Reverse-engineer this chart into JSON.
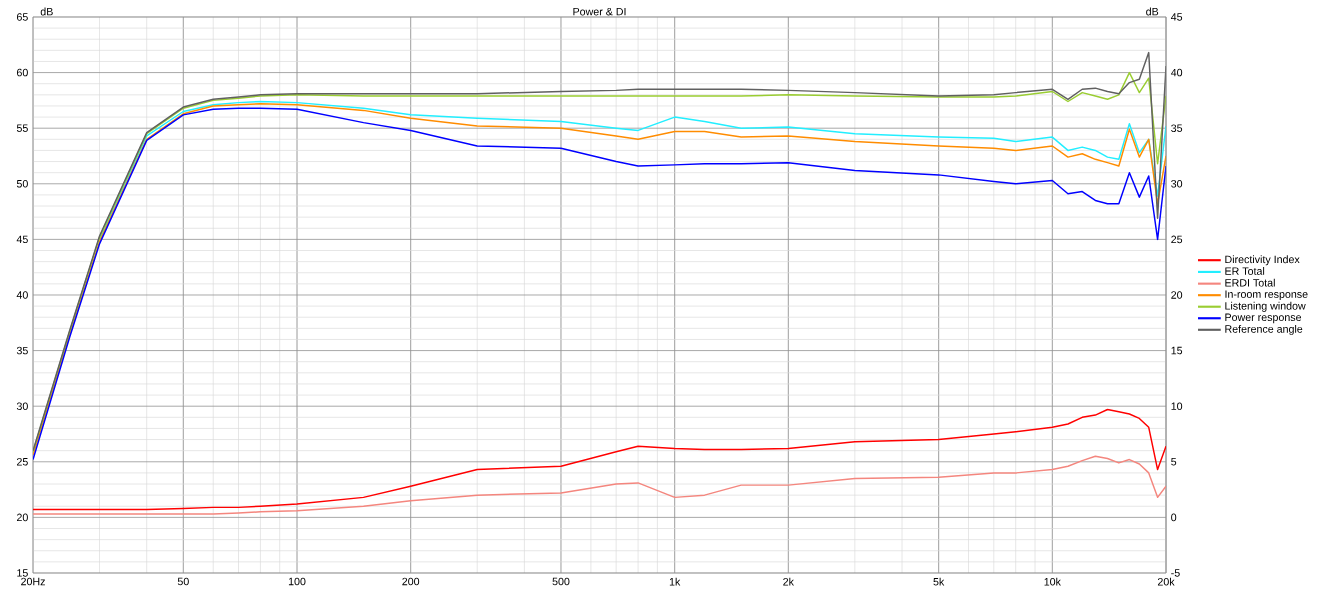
{
  "chart_data": {
    "type": "line",
    "title": "Power & DI",
    "ylabel": "dB",
    "y2label": "dB",
    "x": [
      20,
      25,
      30,
      40,
      50,
      60,
      70,
      80,
      100,
      150,
      200,
      300,
      500,
      700,
      800,
      1000,
      1200,
      1500,
      2000,
      3000,
      5000,
      7000,
      8000,
      10000,
      11000,
      12000,
      13000,
      14000,
      15000,
      16000,
      17000,
      18000,
      19000,
      20000
    ],
    "log": "x",
    "grid": true,
    "legend": "right",
    "xlim": [
      20,
      20000
    ],
    "xticks": [
      {
        "value": 20,
        "label": "20Hz"
      },
      50,
      100,
      200,
      500,
      {
        "value": 1000,
        "label": "1k"
      },
      {
        "value": 2000,
        "label": "2k"
      },
      {
        "value": 5000,
        "label": "5k"
      },
      {
        "value": 10000,
        "label": "10k"
      },
      {
        "value": 20000,
        "label": "20k"
      }
    ],
    "ylim": [
      15,
      65
    ],
    "yticks": [
      15,
      20,
      25,
      30,
      35,
      40,
      45,
      50,
      55,
      60,
      65
    ],
    "y2lim": [
      -5,
      45
    ],
    "y2ticks": [
      -5,
      0,
      5,
      10,
      15,
      20,
      25,
      30,
      35,
      40,
      45
    ],
    "series": [
      {
        "name": "Directivity Index",
        "color": "#ff0000",
        "axis": "y2",
        "values": [
          0.7,
          0.7,
          0.7,
          0.7,
          0.8,
          0.9,
          0.9,
          1.0,
          1.2,
          1.8,
          2.8,
          4.3,
          4.6,
          5.9,
          6.4,
          6.2,
          6.1,
          6.1,
          6.2,
          6.8,
          7.0,
          7.5,
          7.7,
          8.1,
          8.4,
          9.0,
          9.2,
          9.7,
          9.5,
          9.3,
          8.9,
          8.1,
          4.3,
          6.4
        ]
      },
      {
        "name": "ER Total",
        "color": "#22eeff",
        "values": [
          null,
          null,
          45.0,
          54.3,
          56.5,
          57.1,
          57.3,
          57.4,
          57.3,
          56.8,
          56.2,
          55.9,
          55.6,
          55.0,
          54.8,
          56.0,
          55.6,
          55.0,
          55.1,
          54.5,
          54.2,
          54.1,
          53.8,
          54.2,
          53.0,
          53.3,
          53.0,
          52.4,
          52.2,
          55.4,
          52.8,
          54.0,
          48.9,
          55.2
        ]
      },
      {
        "name": "ERDI Total",
        "color": "#f4867e",
        "axis": "y2",
        "values": [
          0.3,
          0.3,
          0.3,
          0.3,
          0.3,
          0.3,
          0.4,
          0.5,
          0.6,
          1.0,
          1.5,
          2.0,
          2.2,
          3.0,
          3.1,
          1.8,
          2.0,
          2.9,
          2.9,
          3.5,
          3.6,
          4.0,
          4.0,
          4.3,
          4.6,
          5.1,
          5.5,
          5.3,
          4.9,
          5.2,
          4.8,
          4.0,
          1.8,
          2.8
        ]
      },
      {
        "name": "In-room response",
        "color": "#ff8c00",
        "values": [
          25.6,
          36.4,
          44.8,
          54.0,
          56.3,
          57.0,
          57.1,
          57.2,
          57.1,
          56.6,
          55.9,
          55.2,
          55.0,
          54.3,
          54.0,
          54.7,
          54.7,
          54.2,
          54.3,
          53.8,
          53.4,
          53.2,
          53.0,
          53.4,
          52.4,
          52.7,
          52.2,
          51.9,
          51.6,
          54.9,
          52.4,
          54.0,
          48.2,
          52.5
        ]
      },
      {
        "name": "Listening window",
        "color": "#9acd32",
        "values": [
          25.9,
          36.7,
          45.2,
          54.5,
          56.8,
          57.5,
          57.7,
          57.9,
          58.0,
          57.9,
          57.9,
          57.9,
          57.9,
          57.9,
          57.9,
          57.9,
          57.9,
          57.9,
          58.0,
          57.9,
          57.8,
          57.8,
          57.9,
          58.3,
          57.4,
          58.2,
          57.9,
          57.6,
          58.0,
          60.0,
          58.2,
          59.5,
          51.8,
          57.9
        ]
      },
      {
        "name": "Power response",
        "color": "#0000ff",
        "values": [
          25.2,
          36.2,
          44.6,
          53.9,
          56.2,
          56.7,
          56.8,
          56.8,
          56.7,
          55.5,
          54.8,
          53.4,
          53.2,
          52.0,
          51.6,
          51.7,
          51.8,
          51.8,
          51.9,
          51.2,
          50.8,
          50.2,
          50.0,
          50.3,
          49.1,
          49.3,
          48.5,
          48.2,
          48.2,
          51.0,
          48.8,
          50.7,
          45.0,
          51.6
        ]
      },
      {
        "name": "Reference angle",
        "color": "#606060",
        "values": [
          26.0,
          36.8,
          45.3,
          54.6,
          56.9,
          57.6,
          57.8,
          58.0,
          58.1,
          58.1,
          58.1,
          58.1,
          58.3,
          58.4,
          58.5,
          58.5,
          58.5,
          58.5,
          58.4,
          58.2,
          57.9,
          58.0,
          58.2,
          58.5,
          57.6,
          58.5,
          58.6,
          58.3,
          58.1,
          59.1,
          59.4,
          61.8,
          46.9,
          60.6
        ]
      }
    ]
  }
}
